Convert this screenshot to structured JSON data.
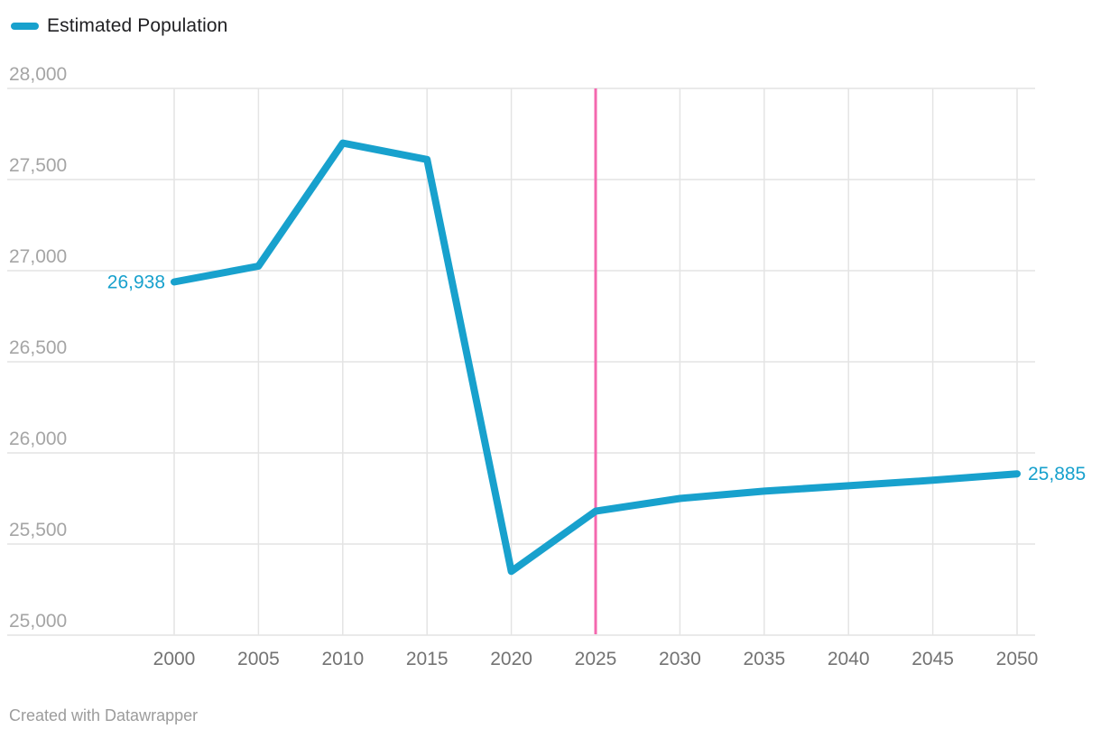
{
  "legend": {
    "label": "Estimated Population"
  },
  "footer": {
    "credit": "Created with Datawrapper"
  },
  "colors": {
    "series": "#18a1cd",
    "annotation_line": "#f468af",
    "grid": "#e4e4e4",
    "y_tick_text": "#a5a5a5",
    "x_tick_text": "#737373",
    "legend_text": "#212124",
    "background": "#ffffff"
  },
  "chart_data": {
    "type": "line",
    "title": "",
    "xlabel": "",
    "ylabel": "",
    "xlim": [
      2000,
      2050
    ],
    "ylim": [
      25000,
      28000
    ],
    "grid": true,
    "legend_position": "top-left",
    "x_ticks": [
      2000,
      2005,
      2010,
      2015,
      2020,
      2025,
      2030,
      2035,
      2040,
      2045,
      2050
    ],
    "x_tick_labels": [
      "2000",
      "2005",
      "2010",
      "2015",
      "2020",
      "2025",
      "2030",
      "2035",
      "2040",
      "2045",
      "2050"
    ],
    "y_ticks": [
      28000,
      27500,
      27000,
      26500,
      26000,
      25500,
      25000
    ],
    "y_tick_labels": [
      "28,000",
      "27,500",
      "27,000",
      "26,500",
      "26,000",
      "25,500",
      "25,000"
    ],
    "series": [
      {
        "name": "Estimated Population",
        "x": [
          2000,
          2005,
          2010,
          2015,
          2020,
          2025,
          2030,
          2035,
          2040,
          2045,
          2050
        ],
        "values": [
          26938,
          27025,
          27700,
          27610,
          25350,
          25680,
          25750,
          25790,
          25820,
          25850,
          25885
        ]
      }
    ],
    "annotations": {
      "vertical_line_x": 2025,
      "start_point_label": "26,938",
      "end_point_label": "25,885"
    }
  }
}
